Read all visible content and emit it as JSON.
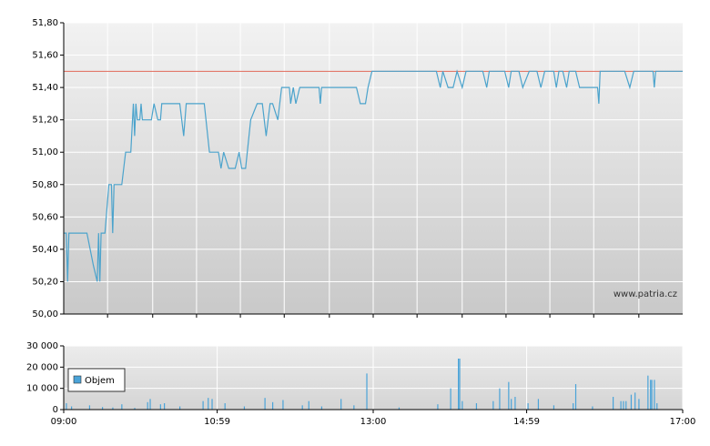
{
  "chart_data": [
    {
      "type": "line",
      "annotation": "www.patria.cz",
      "xlim": [
        "09:00",
        "17:00"
      ],
      "xgrid": [
        "09:34",
        "10:09",
        "10:43",
        "11:17",
        "11:51",
        "12:26",
        "13:00",
        "13:34",
        "14:09",
        "14:43",
        "15:17",
        "15:51",
        "16:26"
      ],
      "ylim": [
        50.0,
        51.8
      ],
      "yticks": [
        {
          "value": 50.0,
          "label": "50,00"
        },
        {
          "value": 50.2,
          "label": "50,20"
        },
        {
          "value": 50.4,
          "label": "50,40"
        },
        {
          "value": 50.6,
          "label": "50,60"
        },
        {
          "value": 50.8,
          "label": "50,80"
        },
        {
          "value": 51.0,
          "label": "51,00"
        },
        {
          "value": 51.2,
          "label": "51,20"
        },
        {
          "value": 51.4,
          "label": "51,40"
        },
        {
          "value": 51.6,
          "label": "51,60"
        },
        {
          "value": 51.8,
          "label": "51,80"
        }
      ],
      "grid": true,
      "reference_line": {
        "value": 51.5,
        "color": "#e06a5a"
      },
      "series": [
        {
          "color": "#4ba3cc",
          "x": [
            "09:00",
            "09:02",
            "09:03",
            "09:04",
            "09:18",
            "09:23",
            "09:26",
            "09:27",
            "09:28",
            "09:29",
            "09:32",
            "09:35",
            "09:37",
            "09:38",
            "09:39",
            "09:45",
            "09:48",
            "09:52",
            "09:54",
            "09:55",
            "09:56",
            "09:57",
            "09:59",
            "10:00",
            "10:01",
            "10:08",
            "10:10",
            "10:13",
            "10:15",
            "10:16",
            "10:30",
            "10:33",
            "10:35",
            "10:49",
            "10:53",
            "11:00",
            "11:02",
            "11:04",
            "11:08",
            "11:13",
            "11:16",
            "11:18",
            "11:21",
            "11:25",
            "11:30",
            "11:34",
            "11:37",
            "11:40",
            "11:42",
            "11:46",
            "11:49",
            "11:55",
            "11:56",
            "11:58",
            "12:00",
            "12:03",
            "12:18",
            "12:19",
            "12:20",
            "12:47",
            "12:50",
            "12:54",
            "12:56",
            "12:59",
            "13:49",
            "13:52",
            "13:54",
            "13:58",
            "14:02",
            "14:05",
            "14:09",
            "14:12",
            "14:25",
            "14:28",
            "14:30",
            "14:42",
            "14:45",
            "14:47",
            "14:53",
            "14:56",
            "15:01",
            "15:07",
            "15:10",
            "15:13",
            "15:20",
            "15:22",
            "15:24",
            "15:27",
            "15:30",
            "15:32",
            "15:37",
            "15:40",
            "15:54",
            "15:55",
            "15:56",
            "16:15",
            "16:19",
            "16:22",
            "16:37",
            "16:38",
            "16:39",
            "17:00"
          ],
          "values": [
            50.5,
            50.5,
            50.2,
            50.5,
            50.5,
            50.3,
            50.2,
            50.5,
            50.2,
            50.5,
            50.5,
            50.8,
            50.8,
            50.5,
            50.8,
            50.8,
            51.0,
            51.0,
            51.3,
            51.1,
            51.3,
            51.2,
            51.2,
            51.3,
            51.2,
            51.2,
            51.3,
            51.2,
            51.2,
            51.3,
            51.3,
            51.1,
            51.3,
            51.3,
            51.0,
            51.0,
            50.9,
            51.0,
            50.9,
            50.9,
            51.0,
            50.9,
            50.9,
            51.2,
            51.3,
            51.3,
            51.1,
            51.3,
            51.3,
            51.2,
            51.4,
            51.4,
            51.3,
            51.4,
            51.3,
            51.4,
            51.4,
            51.3,
            51.4,
            51.4,
            51.3,
            51.3,
            51.4,
            51.5,
            51.5,
            51.4,
            51.5,
            51.4,
            51.4,
            51.5,
            51.4,
            51.5,
            51.5,
            51.4,
            51.5,
            51.5,
            51.4,
            51.5,
            51.5,
            51.4,
            51.5,
            51.5,
            51.4,
            51.5,
            51.5,
            51.4,
            51.5,
            51.5,
            51.4,
            51.5,
            51.5,
            51.4,
            51.4,
            51.3,
            51.5,
            51.5,
            51.4,
            51.5,
            51.5,
            51.4,
            51.5,
            51.5
          ]
        }
      ]
    },
    {
      "type": "bar",
      "xlim": [
        "09:00",
        "17:00"
      ],
      "xticks": [
        "09:00",
        "10:59",
        "13:00",
        "14:59",
        "17:00"
      ],
      "ylim": [
        0,
        30000
      ],
      "yticks": [
        {
          "value": 0,
          "label": "0"
        },
        {
          "value": 10000,
          "label": "10 000"
        },
        {
          "value": 20000,
          "label": "20 000"
        },
        {
          "value": 30000,
          "label": "30 000"
        }
      ],
      "grid": true,
      "legend": "top-left",
      "series": [
        {
          "name": "Objem",
          "color": "#4aa3d8",
          "x": [
            "09:02",
            "09:06",
            "09:20",
            "09:30",
            "09:38",
            "09:45",
            "09:55",
            "10:05",
            "10:07",
            "10:15",
            "10:18",
            "10:30",
            "10:48",
            "10:52",
            "10:55",
            "11:05",
            "11:20",
            "11:36",
            "11:42",
            "11:50",
            "12:05",
            "12:10",
            "12:20",
            "12:35",
            "12:45",
            "12:55",
            "13:20",
            "13:50",
            "14:00",
            "14:06",
            "14:07",
            "14:09",
            "14:20",
            "14:33",
            "14:38",
            "14:45",
            "14:47",
            "14:50",
            "15:00",
            "15:08",
            "15:20",
            "15:35",
            "15:37",
            "15:50",
            "16:06",
            "16:12",
            "16:14",
            "16:16",
            "16:20",
            "16:23",
            "16:26",
            "16:33",
            "16:35",
            "16:36",
            "16:38",
            "16:40"
          ],
          "values": [
            3000,
            1500,
            2000,
            1200,
            1000,
            2500,
            800,
            3500,
            5000,
            2500,
            3000,
            1500,
            4000,
            5500,
            5000,
            3000,
            1500,
            5500,
            3500,
            4500,
            2000,
            4000,
            1500,
            5000,
            2000,
            17000,
            1000,
            2500,
            10000,
            24000,
            24000,
            4000,
            3000,
            4000,
            10000,
            13000,
            5000,
            6000,
            3000,
            5000,
            2000,
            3000,
            12000,
            1500,
            6000,
            4000,
            4000,
            4000,
            7000,
            8000,
            5000,
            16000,
            14000,
            14000,
            14000,
            3000
          ]
        }
      ]
    }
  ]
}
